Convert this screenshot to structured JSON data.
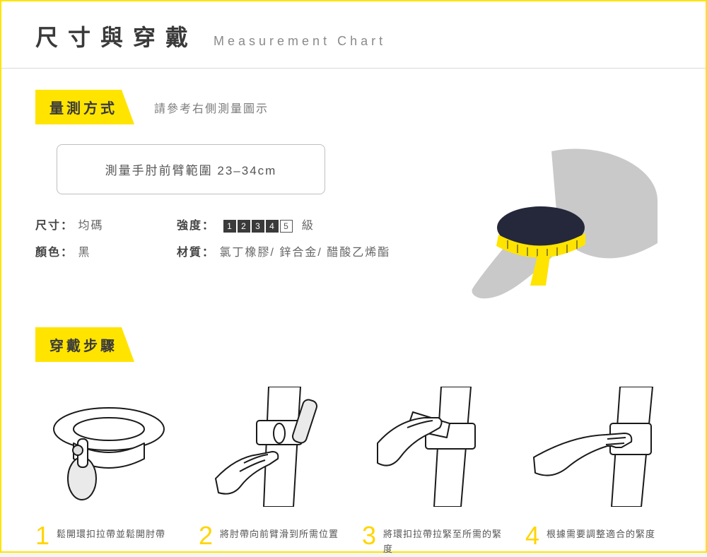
{
  "colors": {
    "accent": "#ffe400",
    "accent_dark": "#ffd500",
    "text_primary": "#3a3a3a",
    "text_secondary": "#7b7b7b",
    "border": "#bfbfbf",
    "arm_gray": "#c9c9c9",
    "band_dark": "#24283a",
    "stroke": "#1a1a1a"
  },
  "header": {
    "title_cn": "尺寸與穿戴",
    "title_en": "Measurement Chart"
  },
  "measure": {
    "tab": "量測方式",
    "note": "請參考右側測量圖示",
    "range_text": "測量手肘前臂範圍 23–34cm",
    "spec": {
      "size_label": "尺寸：",
      "size_value": "均碼",
      "color_label": "顏色：",
      "color_value": "黑",
      "strength_label": "強度：",
      "strength_suffix": "級",
      "strength_levels": [
        {
          "n": "1",
          "filled": true
        },
        {
          "n": "2",
          "filled": true
        },
        {
          "n": "3",
          "filled": true
        },
        {
          "n": "4",
          "filled": true
        },
        {
          "n": "5",
          "filled": false
        }
      ],
      "material_label": "材質：",
      "material_value": "氯丁橡膠/ 鋅合金/ 醋酸乙烯酯"
    }
  },
  "steps": {
    "tab": "穿戴步驟",
    "items": [
      {
        "num": "1",
        "text": "鬆開環扣拉帶並鬆開肘帶"
      },
      {
        "num": "2",
        "text": "將肘帶向前臂滑到所需位置"
      },
      {
        "num": "3",
        "text": "將環扣拉帶拉緊至所需的緊度"
      },
      {
        "num": "4",
        "text": "根據需要調整適合的緊度"
      }
    ]
  }
}
